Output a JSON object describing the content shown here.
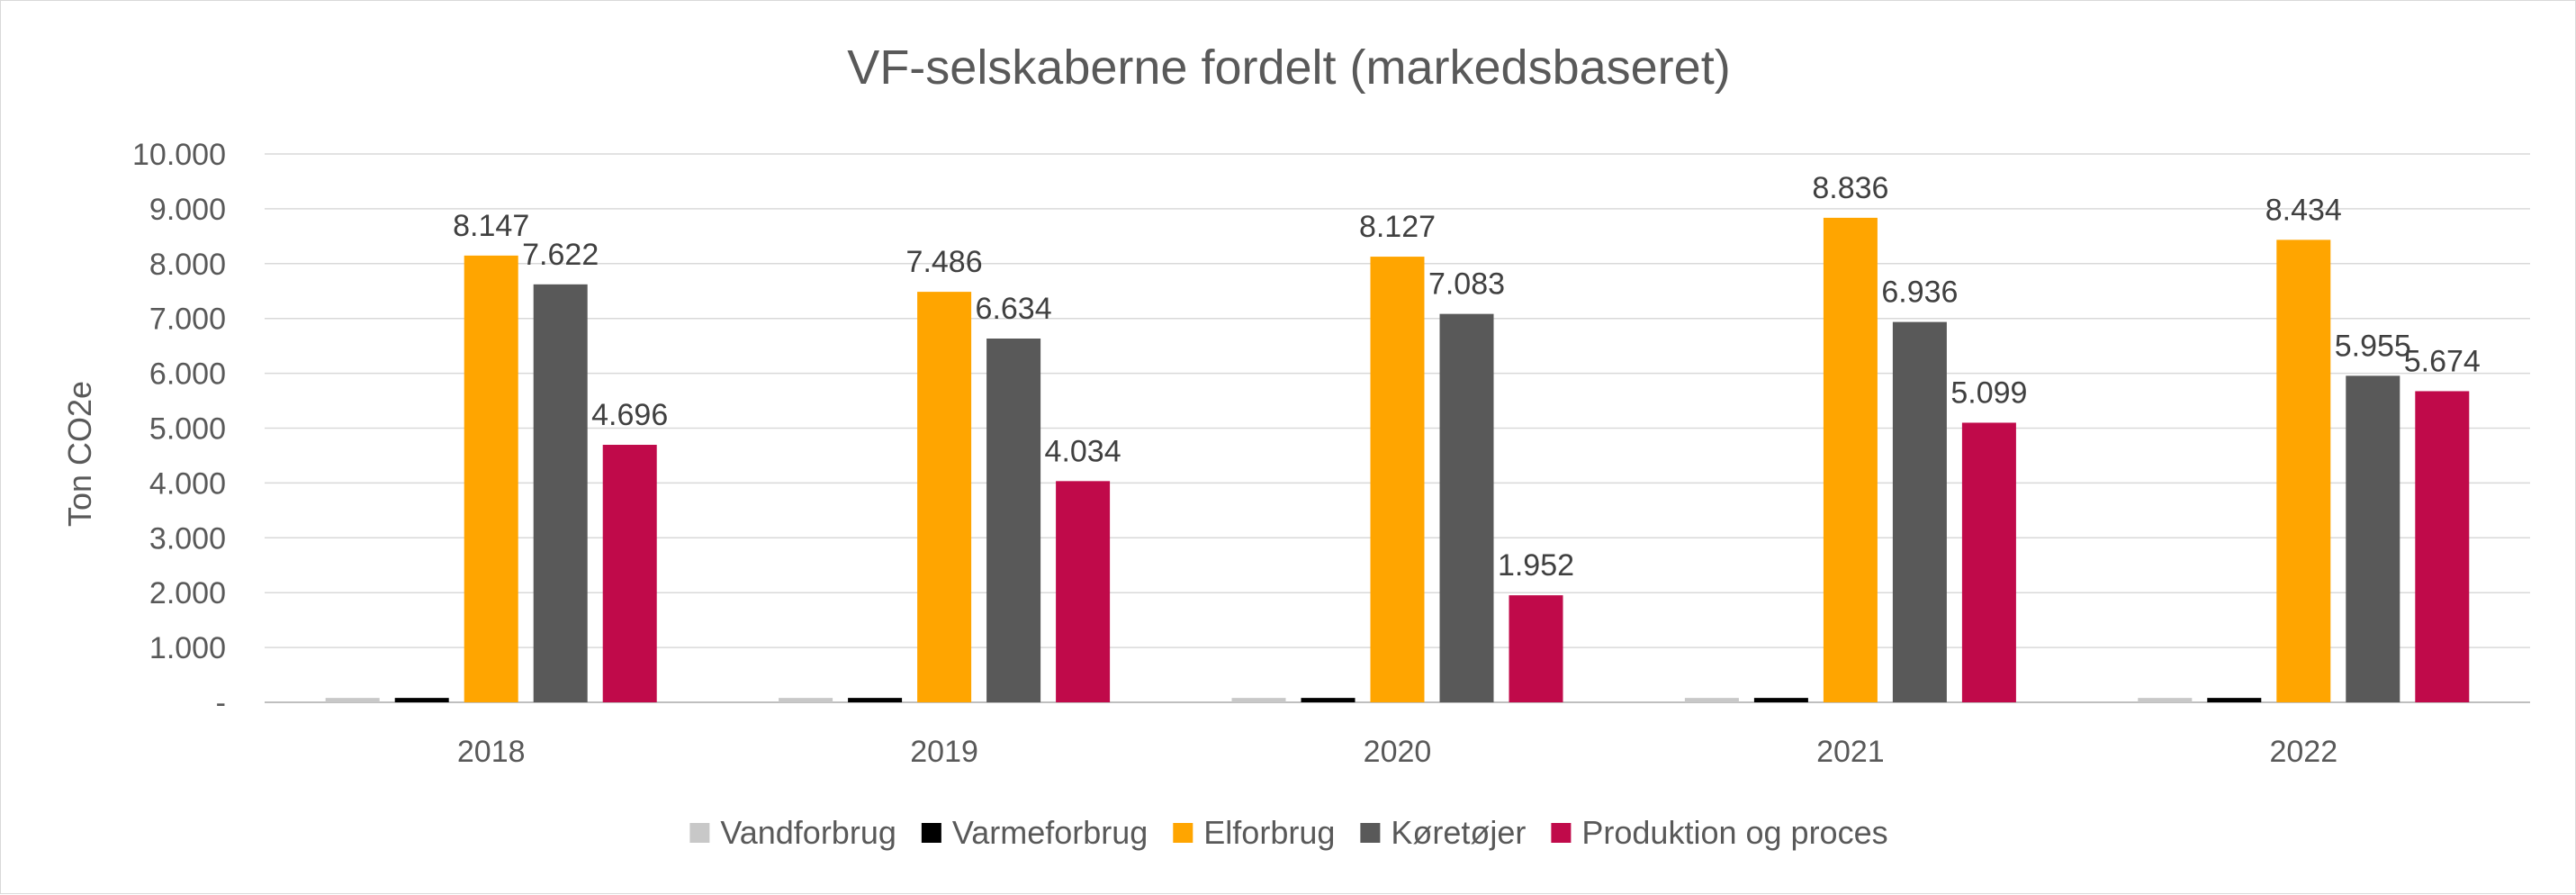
{
  "chart_data": {
    "type": "bar",
    "title": "VF-selskaberne fordelt (markedsbaseret)",
    "xlabel": "",
    "ylabel": "Ton CO2e",
    "categories": [
      "2018",
      "2019",
      "2020",
      "2021",
      "2022"
    ],
    "ylim": [
      0,
      10000
    ],
    "yticks": [
      "-",
      "1.000",
      "2.000",
      "3.000",
      "4.000",
      "5.000",
      "6.000",
      "7.000",
      "8.000",
      "9.000",
      "10.000"
    ],
    "grid": true,
    "legend_position": "bottom",
    "series": [
      {
        "name": "Vandforbrug",
        "color": "#c8c8c8",
        "values": [
          80,
          80,
          80,
          80,
          80
        ],
        "labels": [
          "",
          "",
          "",
          "",
          ""
        ]
      },
      {
        "name": "Varmeforbrug",
        "color": "#000000",
        "values": [
          80,
          80,
          80,
          80,
          80
        ],
        "labels": [
          "",
          "",
          "",
          "",
          ""
        ]
      },
      {
        "name": "Elforbrug",
        "color": "#ffa500",
        "values": [
          8147,
          7486,
          8127,
          8836,
          8434
        ],
        "labels": [
          "8.147",
          "7.486",
          "8.127",
          "8.836",
          "8.434"
        ]
      },
      {
        "name": "Køretøjer",
        "color": "#595959",
        "values": [
          7622,
          6634,
          7083,
          6936,
          5955
        ],
        "labels": [
          "7.622",
          "6.634",
          "7.083",
          "6.936",
          "5.955"
        ]
      },
      {
        "name": "Produktion og proces",
        "color": "#c00a4a",
        "values": [
          4696,
          4034,
          1952,
          5099,
          5674
        ],
        "labels": [
          "4.696",
          "4.034",
          "1.952",
          "5.099",
          "5.674"
        ]
      }
    ]
  }
}
